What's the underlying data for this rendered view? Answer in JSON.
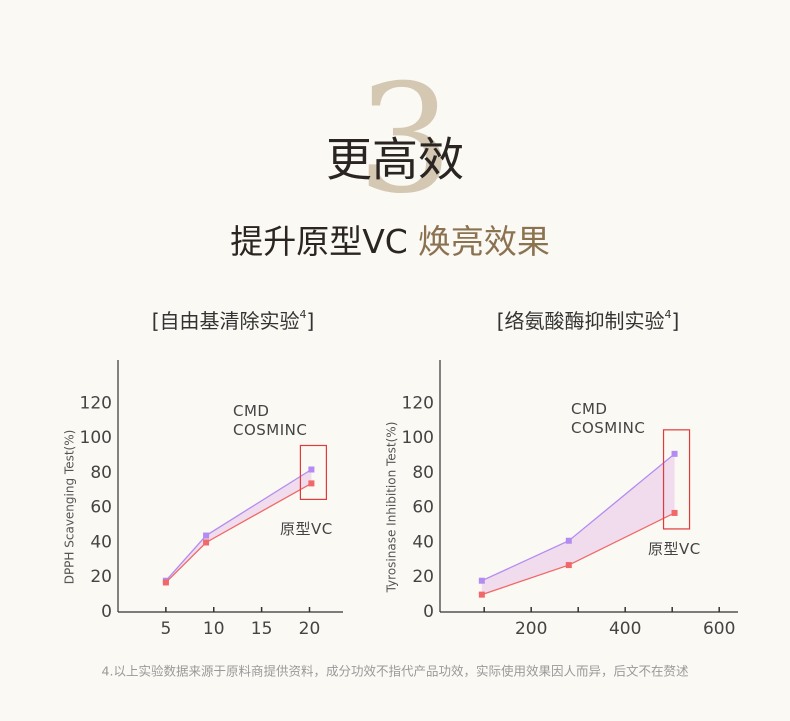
{
  "header": {
    "number": "3",
    "title": "更高效",
    "subtitle": [
      "提升原型VC",
      "焕亮效果"
    ]
  },
  "chart_data": [
    {
      "type": "line",
      "title": [
        "[自由基清除实验",
        "4",
        "]"
      ],
      "y_label": "DPPH Scavenging Test(%)",
      "x": [
        5,
        9.2,
        20.2
      ],
      "xlim": [
        0,
        23.5
      ],
      "xticks": [
        5,
        10,
        15,
        20
      ],
      "ylim": [
        0,
        145
      ],
      "yticks": [
        0,
        20,
        40,
        60,
        80,
        100,
        120
      ],
      "series": [
        {
          "name": "CMD COSMINC",
          "color": "#b38cf2",
          "values": [
            18,
            44,
            82
          ]
        },
        {
          "name": "原型VC",
          "color": "#f06868",
          "values": [
            17,
            40,
            74
          ]
        }
      ]
    },
    {
      "type": "line",
      "title": [
        "[络氨酸酶抑制实验",
        "4",
        "]"
      ],
      "y_label": "Tyrosinase Inhibition Test(%)",
      "x": [
        95,
        280,
        505
      ],
      "xlim": [
        6,
        640
      ],
      "xticks": [
        200,
        400,
        600
      ],
      "xminor": [
        100,
        300,
        500
      ],
      "ylim": [
        0,
        145
      ],
      "yticks": [
        0,
        20,
        40,
        60,
        80,
        100,
        120
      ],
      "series": [
        {
          "name": "CMD COSMINC",
          "color": "#b38cf2",
          "values": [
            18,
            41,
            91
          ]
        },
        {
          "name": "原型VC",
          "color": "#f06868",
          "values": [
            10,
            27,
            57
          ]
        }
      ]
    }
  ],
  "footnote": "4.以上实验数据来源于原料商提供资料，成分功效不指代产品功效，实际使用效果因人而异，后文不在赘述"
}
